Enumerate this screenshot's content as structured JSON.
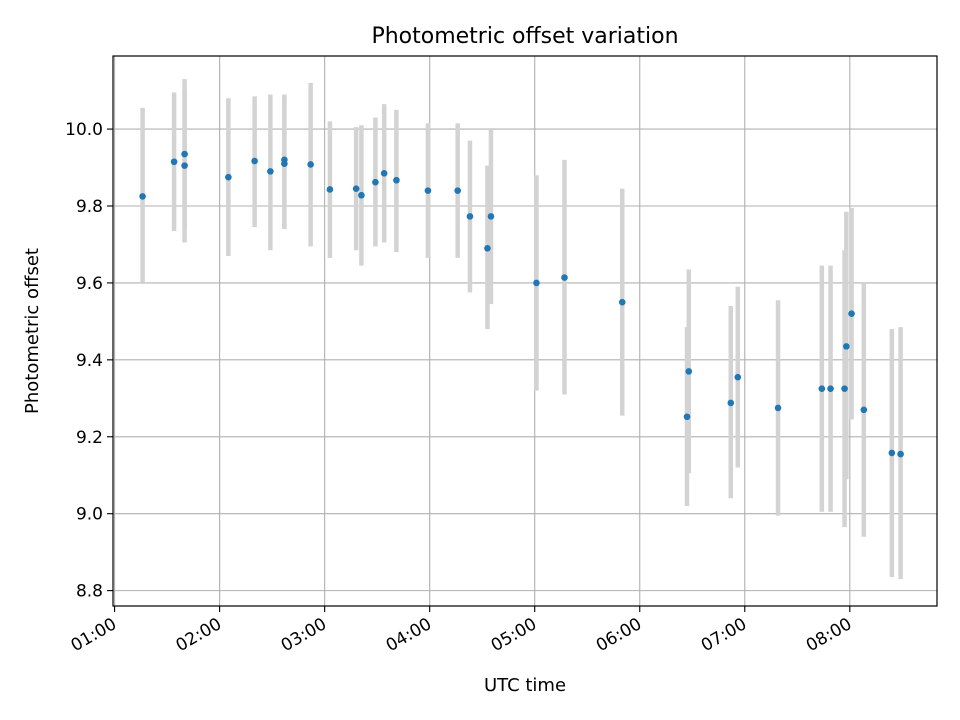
{
  "chart_data": {
    "type": "scatter",
    "title": "Photometric offset variation",
    "xlabel": "UTC time",
    "ylabel": "Photometric offset",
    "x_ticks": [
      "01:00",
      "02:00",
      "03:00",
      "04:00",
      "05:00",
      "06:00",
      "07:00",
      "08:00"
    ],
    "x_range_hours": [
      0.985,
      8.83
    ],
    "y_ticks": [
      8.8,
      9.0,
      9.2,
      9.4,
      9.6,
      9.8,
      10.0
    ],
    "ylim": [
      8.76,
      10.19
    ],
    "grid": true,
    "marker_color": "#1f77b4",
    "errorbar_color": "#d3d3d3",
    "points": [
      {
        "time": "01:16",
        "y": 9.825,
        "lo": 9.6,
        "hi": 10.055
      },
      {
        "time": "01:34",
        "y": 9.915,
        "lo": 9.735,
        "hi": 10.095
      },
      {
        "time": "01:40",
        "y": 9.935,
        "lo": 9.745,
        "hi": 10.13
      },
      {
        "time": "01:40",
        "y": 9.905,
        "lo": 9.705,
        "hi": 10.1
      },
      {
        "time": "02:05",
        "y": 9.875,
        "lo": 9.67,
        "hi": 10.08
      },
      {
        "time": "02:20",
        "y": 9.917,
        "lo": 9.745,
        "hi": 10.085
      },
      {
        "time": "02:29",
        "y": 9.89,
        "lo": 9.685,
        "hi": 10.09
      },
      {
        "time": "02:37",
        "y": 9.92,
        "lo": 9.745,
        "hi": 10.09
      },
      {
        "time": "02:37",
        "y": 9.91,
        "lo": 9.74,
        "hi": 10.08
      },
      {
        "time": "02:52",
        "y": 9.908,
        "lo": 9.695,
        "hi": 10.12
      },
      {
        "time": "03:03",
        "y": 9.843,
        "lo": 9.665,
        "hi": 10.02
      },
      {
        "time": "03:18",
        "y": 9.845,
        "lo": 9.685,
        "hi": 10.005
      },
      {
        "time": "03:21",
        "y": 9.828,
        "lo": 9.645,
        "hi": 10.01
      },
      {
        "time": "03:29",
        "y": 9.862,
        "lo": 9.695,
        "hi": 10.03
      },
      {
        "time": "03:34",
        "y": 9.885,
        "lo": 9.705,
        "hi": 10.065
      },
      {
        "time": "03:41",
        "y": 9.867,
        "lo": 9.68,
        "hi": 10.05
      },
      {
        "time": "03:59",
        "y": 9.84,
        "lo": 9.665,
        "hi": 10.015
      },
      {
        "time": "04:16",
        "y": 9.84,
        "lo": 9.665,
        "hi": 10.015
      },
      {
        "time": "04:23",
        "y": 9.773,
        "lo": 9.575,
        "hi": 9.97
      },
      {
        "time": "04:33",
        "y": 9.69,
        "lo": 9.48,
        "hi": 9.905
      },
      {
        "time": "04:35",
        "y": 9.773,
        "lo": 9.545,
        "hi": 10.0
      },
      {
        "time": "05:01",
        "y": 9.6,
        "lo": 9.32,
        "hi": 9.88
      },
      {
        "time": "05:17",
        "y": 9.614,
        "lo": 9.31,
        "hi": 9.92
      },
      {
        "time": "05:50",
        "y": 9.55,
        "lo": 9.255,
        "hi": 9.845
      },
      {
        "time": "06:27",
        "y": 9.252,
        "lo": 9.02,
        "hi": 9.485
      },
      {
        "time": "06:28",
        "y": 9.37,
        "lo": 9.105,
        "hi": 9.635
      },
      {
        "time": "06:52",
        "y": 9.288,
        "lo": 9.04,
        "hi": 9.54
      },
      {
        "time": "06:56",
        "y": 9.355,
        "lo": 9.12,
        "hi": 9.59
      },
      {
        "time": "07:19",
        "y": 9.275,
        "lo": 8.995,
        "hi": 9.555
      },
      {
        "time": "07:44",
        "y": 9.325,
        "lo": 9.005,
        "hi": 9.645
      },
      {
        "time": "07:49",
        "y": 9.325,
        "lo": 9.005,
        "hi": 9.645
      },
      {
        "time": "07:57",
        "y": 9.325,
        "lo": 8.965,
        "hi": 9.685
      },
      {
        "time": "07:58",
        "y": 9.435,
        "lo": 9.09,
        "hi": 9.785
      },
      {
        "time": "08:01",
        "y": 9.52,
        "lo": 9.245,
        "hi": 9.795
      },
      {
        "time": "08:08",
        "y": 9.27,
        "lo": 8.94,
        "hi": 9.6
      },
      {
        "time": "08:24",
        "y": 9.158,
        "lo": 8.835,
        "hi": 9.48
      },
      {
        "time": "08:29",
        "y": 9.155,
        "lo": 8.83,
        "hi": 9.485
      }
    ]
  }
}
